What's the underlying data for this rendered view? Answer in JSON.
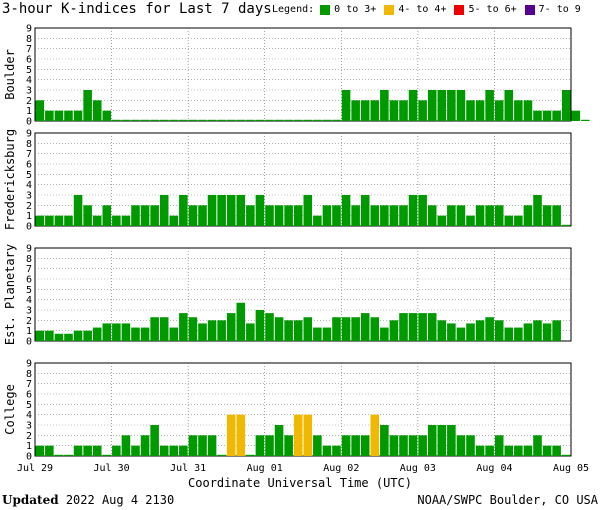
{
  "title": "3-hour K-indices for Last 7 days",
  "legend": {
    "label": "Legend:",
    "items": [
      {
        "label": "0 to 3+",
        "color": "#009900"
      },
      {
        "label": "4- to 4+",
        "color": "#f0b800"
      },
      {
        "label": "5- to 6+",
        "color": "#ee0000"
      },
      {
        "label": "7- to 9",
        "color": "#55008f"
      }
    ]
  },
  "footer": {
    "updated_label": "Updated",
    "updated_value": "2022 Aug  4 2130",
    "source": "NOAA/SWPC Boulder, CO USA"
  },
  "chart_data": {
    "type": "bar",
    "xlabel": "Coordinate Universal Time (UTC)",
    "x_tick_labels": [
      "Jul 29",
      "Jul 30",
      "Jul 31",
      "Aug 01",
      "Aug 02",
      "Aug 03",
      "Aug 04",
      "Aug 05"
    ],
    "ylim": [
      0,
      9
    ],
    "yticks": [
      0,
      1,
      2,
      3,
      4,
      5,
      6,
      7,
      8,
      9
    ],
    "grid": true,
    "panels": [
      {
        "name": "Boulder",
        "values": [
          2,
          1,
          1,
          1,
          1,
          3,
          2,
          1,
          0,
          0,
          0,
          0,
          0,
          0,
          0,
          0,
          0,
          0,
          0,
          0,
          0,
          0,
          0,
          0,
          0,
          0,
          0,
          0,
          0,
          0,
          0,
          0,
          3,
          2,
          2,
          2,
          3,
          2,
          2,
          3,
          2,
          3,
          3,
          3,
          3,
          2,
          2,
          3,
          2,
          3,
          2,
          2,
          1,
          1,
          1,
          3,
          1,
          0
        ]
      },
      {
        "name": "Fredericksburg",
        "values": [
          1,
          1,
          1,
          1,
          3,
          2,
          1,
          2,
          1,
          1,
          2,
          2,
          2,
          3,
          1,
          3,
          2,
          2,
          3,
          3,
          3,
          3,
          2,
          3,
          2,
          2,
          2,
          2,
          3,
          1,
          2,
          2,
          3,
          2,
          3,
          2,
          2,
          2,
          2,
          3,
          3,
          2,
          1,
          2,
          2,
          1,
          2,
          2,
          2,
          1,
          1,
          2,
          3,
          2,
          2,
          0
        ]
      },
      {
        "name": "Est. Planetary",
        "values": [
          1,
          1,
          0.7,
          0.7,
          1,
          1,
          1.3,
          1.7,
          1.7,
          1.7,
          1.3,
          1.3,
          2.3,
          2.3,
          1.3,
          2.7,
          2.3,
          1.7,
          2,
          2,
          2.7,
          3.7,
          1.7,
          3,
          2.7,
          2.3,
          2,
          2,
          2.3,
          1.3,
          1.3,
          2.3,
          2.3,
          2.3,
          2.7,
          2.3,
          1.3,
          2,
          2.7,
          2.7,
          2.7,
          2.7,
          2,
          1.7,
          1.3,
          1.7,
          2,
          2.3,
          2,
          1.3,
          1.3,
          1.7,
          2,
          1.7,
          2
        ]
      },
      {
        "name": "College",
        "values": [
          1,
          1,
          0,
          0,
          1,
          1,
          1,
          0,
          1,
          2,
          1,
          2,
          3,
          1,
          1,
          1,
          2,
          2,
          2,
          0,
          4,
          4,
          0,
          2,
          2,
          3,
          2,
          4,
          4,
          2,
          1,
          1,
          2,
          2,
          2,
          4,
          3,
          2,
          2,
          2,
          2,
          3,
          3,
          3,
          2,
          2,
          1,
          1,
          2,
          1,
          1,
          1,
          2,
          1,
          1,
          0
        ]
      }
    ]
  }
}
